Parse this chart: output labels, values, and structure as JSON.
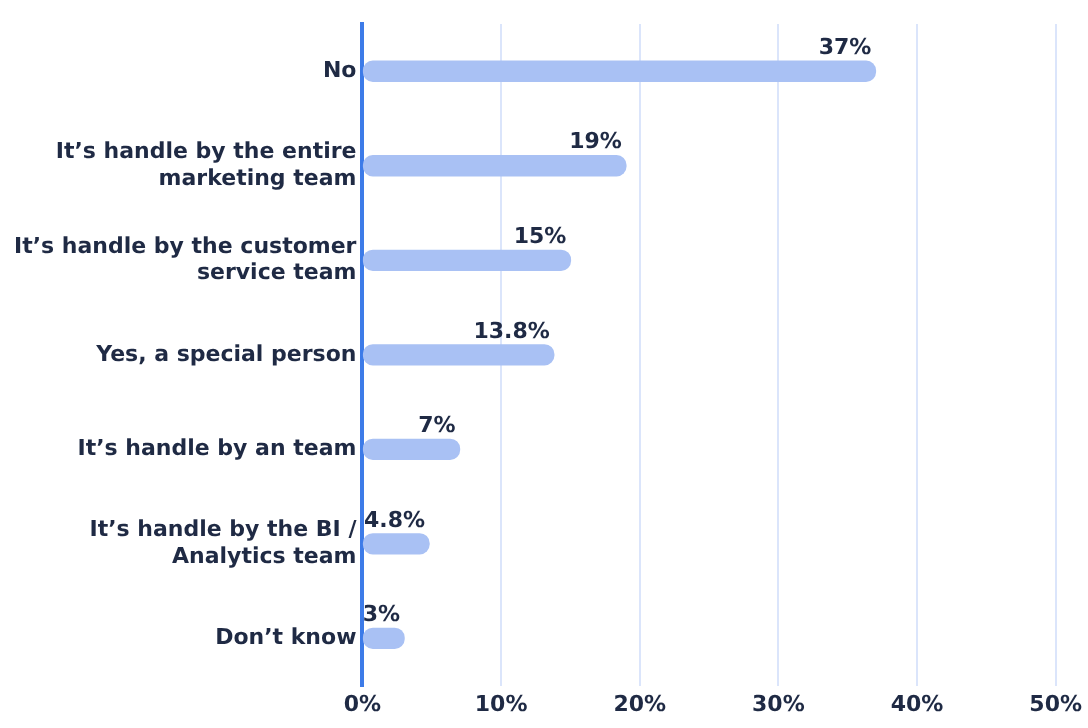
{
  "chart_data": {
    "type": "bar",
    "orientation": "horizontal",
    "categories": [
      "No",
      "It’s handle by the entire marketing team",
      "It’s handle by the customer service team",
      "Yes, a special person",
      "It’s handle by an team",
      "It’s handle by the BI / Analytics team",
      "Don’t know"
    ],
    "values": [
      37,
      19,
      15,
      13.8,
      7,
      4.8,
      3
    ],
    "value_labels": [
      "37%",
      "19%",
      "15%",
      "13.8%",
      "7%",
      "4.8%",
      "3%"
    ],
    "color": "#a9c1f4",
    "xlim": [
      0,
      50
    ],
    "xticks": [
      {
        "value": 0,
        "label": "0%"
      },
      {
        "value": 10,
        "label": "10%"
      },
      {
        "value": 20,
        "label": "20%"
      },
      {
        "value": 30,
        "label": "30%"
      },
      {
        "value": 40,
        "label": "40%"
      },
      {
        "value": 50,
        "label": "50%"
      }
    ],
    "grid": "x",
    "legend": false
  }
}
